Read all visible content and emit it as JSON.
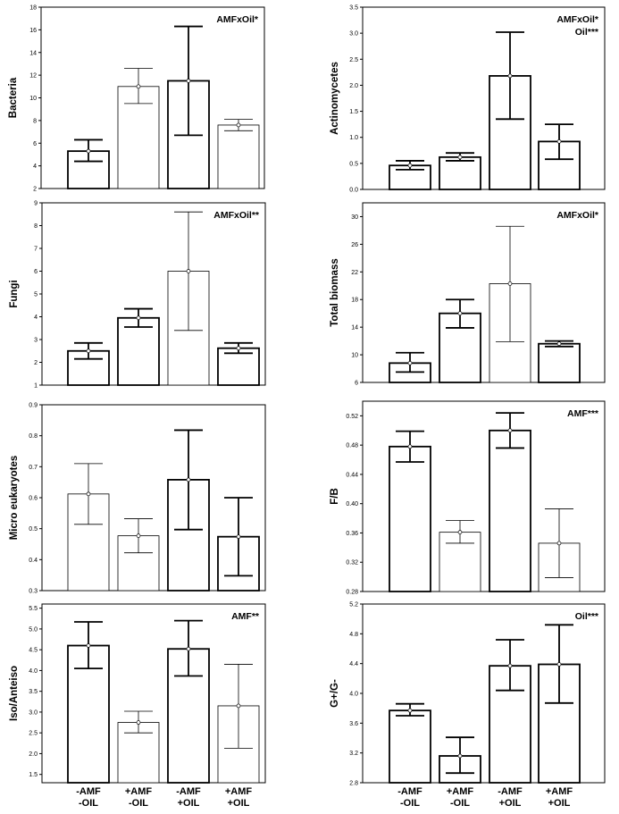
{
  "figure": {
    "x_categories": [
      [
        "-AMF",
        "-OIL"
      ],
      [
        "+AMF",
        "-OIL"
      ],
      [
        "-AMF",
        "+OIL"
      ],
      [
        "+AMF",
        "+OIL"
      ]
    ]
  },
  "chart_data": [
    {
      "type": "bar",
      "ylabel": "Bacteria",
      "annotation": [
        "AMFxOil*"
      ],
      "ylim": [
        2,
        18
      ],
      "ticks": [
        2,
        4,
        6,
        8,
        10,
        12,
        14,
        16,
        18
      ],
      "decimals": 0,
      "values": [
        5.3,
        11.0,
        11.5,
        7.6
      ],
      "err_low": [
        4.4,
        9.5,
        6.7,
        7.1
      ],
      "err_high": [
        6.3,
        12.6,
        16.3,
        8.1
      ],
      "bold": [
        true,
        false,
        true,
        false
      ]
    },
    {
      "type": "bar",
      "ylabel": "Actinomycetes",
      "annotation": [
        "AMFxOil*",
        "Oil***"
      ],
      "ylim": [
        0,
        3.5
      ],
      "ticks": [
        0.0,
        0.5,
        1.0,
        1.5,
        2.0,
        2.5,
        3.0,
        3.5
      ],
      "decimals": 1,
      "values": [
        0.46,
        0.62,
        2.18,
        0.92
      ],
      "err_low": [
        0.38,
        0.55,
        1.35,
        0.58
      ],
      "err_high": [
        0.55,
        0.7,
        3.02,
        1.25
      ],
      "bold": [
        true,
        true,
        true,
        true
      ]
    },
    {
      "type": "bar",
      "ylabel": "Fungi",
      "annotation": [
        "AMFxOil**"
      ],
      "ylim": [
        1,
        9
      ],
      "ticks": [
        1,
        2,
        3,
        4,
        5,
        6,
        7,
        8,
        9
      ],
      "decimals": 0,
      "values": [
        2.5,
        3.95,
        6.0,
        2.62
      ],
      "err_low": [
        2.15,
        3.55,
        3.4,
        2.4
      ],
      "err_high": [
        2.85,
        4.35,
        8.6,
        2.85
      ],
      "bold": [
        true,
        true,
        false,
        true
      ]
    },
    {
      "type": "bar",
      "ylabel": "Total biomass",
      "annotation": [
        "AMFxOil*"
      ],
      "ylim": [
        6,
        32
      ],
      "ticks": [
        6,
        10,
        14,
        18,
        22,
        26,
        30
      ],
      "decimals": 0,
      "values": [
        8.8,
        16.0,
        20.3,
        11.6
      ],
      "err_low": [
        7.5,
        13.9,
        11.9,
        11.2
      ],
      "err_high": [
        10.3,
        18.0,
        28.6,
        12.0
      ],
      "bold": [
        true,
        true,
        false,
        true
      ]
    },
    {
      "type": "bar",
      "ylabel": "Micro eukaryotes",
      "annotation": [],
      "ylim": [
        0.3,
        0.9
      ],
      "ticks": [
        0.3,
        0.4,
        0.5,
        0.6,
        0.7,
        0.8,
        0.9
      ],
      "decimals": 1,
      "values": [
        0.612,
        0.477,
        0.658,
        0.474
      ],
      "err_low": [
        0.514,
        0.422,
        0.497,
        0.348
      ],
      "err_high": [
        0.71,
        0.532,
        0.818,
        0.6
      ],
      "bold": [
        false,
        false,
        true,
        true
      ]
    },
    {
      "type": "bar",
      "ylabel": "F/B",
      "annotation": [
        "AMF***"
      ],
      "ylim": [
        0.28,
        0.54
      ],
      "ticks": [
        0.28,
        0.32,
        0.36,
        0.4,
        0.44,
        0.48,
        0.52
      ],
      "decimals": 2,
      "values": [
        0.478,
        0.361,
        0.5,
        0.346
      ],
      "err_low": [
        0.457,
        0.346,
        0.476,
        0.299
      ],
      "err_high": [
        0.499,
        0.377,
        0.524,
        0.393
      ],
      "bold": [
        true,
        false,
        true,
        false
      ]
    },
    {
      "type": "bar",
      "ylabel": "Iso/Anteiso",
      "annotation": [
        "AMF**"
      ],
      "ylim": [
        1.3,
        5.6
      ],
      "ticks": [
        1.5,
        2.0,
        2.5,
        3.0,
        3.5,
        4.0,
        4.5,
        5.0,
        5.5
      ],
      "decimals": 1,
      "values": [
        4.6,
        2.75,
        4.52,
        3.15
      ],
      "err_low": [
        4.05,
        2.5,
        3.87,
        2.13
      ],
      "err_high": [
        5.17,
        3.02,
        5.2,
        4.15
      ],
      "bold": [
        true,
        false,
        true,
        false
      ]
    },
    {
      "type": "bar",
      "ylabel": "G+/G-",
      "annotation": [
        "Oil***"
      ],
      "ylim": [
        2.8,
        5.2
      ],
      "ticks": [
        2.8,
        3.2,
        3.6,
        4.0,
        4.4,
        4.8,
        5.2
      ],
      "decimals": 1,
      "values": [
        3.77,
        3.16,
        4.37,
        4.39
      ],
      "err_low": [
        3.7,
        2.93,
        4.04,
        3.87
      ],
      "err_high": [
        3.86,
        3.41,
        4.72,
        4.92
      ],
      "bold": [
        true,
        true,
        true,
        true
      ]
    }
  ]
}
